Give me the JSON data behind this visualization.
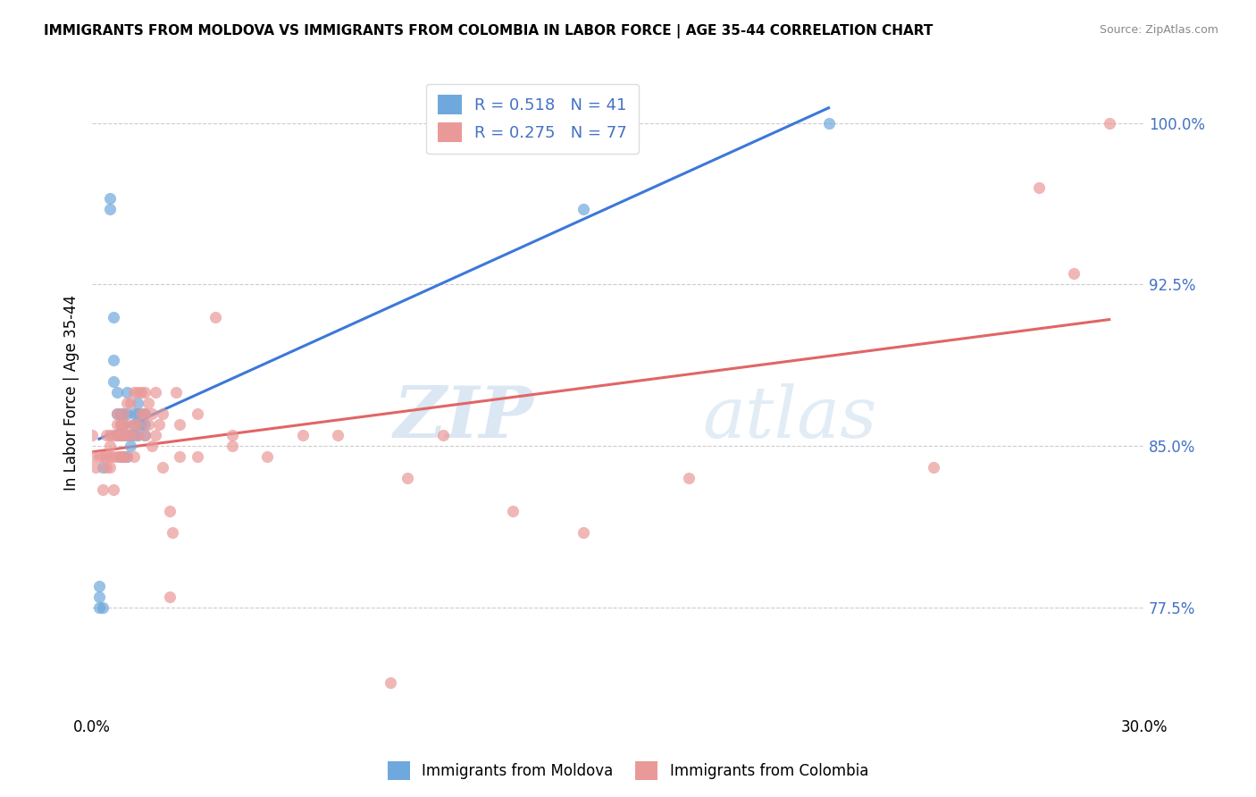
{
  "title": "IMMIGRANTS FROM MOLDOVA VS IMMIGRANTS FROM COLOMBIA IN LABOR FORCE | AGE 35-44 CORRELATION CHART",
  "source": "Source: ZipAtlas.com",
  "ylabel": "In Labor Force | Age 35-44",
  "xlim": [
    0.0,
    0.3
  ],
  "ylim": [
    0.725,
    1.025
  ],
  "yticks": [
    0.775,
    0.85,
    0.925,
    1.0
  ],
  "ytick_labels": [
    "77.5%",
    "85.0%",
    "92.5%",
    "100.0%"
  ],
  "xticks": [
    0.0,
    0.05,
    0.1,
    0.15,
    0.2,
    0.25,
    0.3
  ],
  "xtick_labels": [
    "0.0%",
    "",
    "",
    "",
    "",
    "",
    "30.0%"
  ],
  "moldova_color": "#6fa8dc",
  "colombia_color": "#ea9999",
  "moldova_line_color": "#3c78d8",
  "colombia_line_color": "#e06666",
  "moldova_R": 0.518,
  "moldova_N": 41,
  "colombia_R": 0.275,
  "colombia_N": 77,
  "watermark_zip": "ZIP",
  "watermark_atlas": "atlas",
  "legend_label_moldova": "Immigrants from Moldova",
  "legend_label_colombia": "Immigrants from Colombia",
  "moldova_x": [
    0.003,
    0.005,
    0.005,
    0.006,
    0.006,
    0.006,
    0.007,
    0.007,
    0.007,
    0.008,
    0.008,
    0.008,
    0.008,
    0.009,
    0.009,
    0.009,
    0.009,
    0.01,
    0.01,
    0.01,
    0.01,
    0.011,
    0.011,
    0.012,
    0.012,
    0.012,
    0.013,
    0.013,
    0.013,
    0.013,
    0.014,
    0.014,
    0.015,
    0.015,
    0.015,
    0.002,
    0.002,
    0.002,
    0.003,
    0.14,
    0.21
  ],
  "moldova_y": [
    0.775,
    0.96,
    0.965,
    0.88,
    0.89,
    0.91,
    0.855,
    0.865,
    0.875,
    0.845,
    0.855,
    0.86,
    0.865,
    0.845,
    0.855,
    0.86,
    0.865,
    0.845,
    0.855,
    0.865,
    0.875,
    0.85,
    0.855,
    0.855,
    0.86,
    0.865,
    0.855,
    0.86,
    0.865,
    0.87,
    0.86,
    0.865,
    0.855,
    0.86,
    0.865,
    0.775,
    0.78,
    0.785,
    0.84,
    0.96,
    1.0
  ],
  "colombia_x": [
    0.0,
    0.0,
    0.001,
    0.002,
    0.003,
    0.003,
    0.004,
    0.004,
    0.004,
    0.005,
    0.005,
    0.005,
    0.005,
    0.006,
    0.006,
    0.006,
    0.007,
    0.007,
    0.007,
    0.007,
    0.008,
    0.008,
    0.008,
    0.009,
    0.009,
    0.009,
    0.009,
    0.01,
    0.01,
    0.01,
    0.01,
    0.011,
    0.011,
    0.012,
    0.012,
    0.012,
    0.013,
    0.013,
    0.013,
    0.014,
    0.014,
    0.015,
    0.015,
    0.015,
    0.016,
    0.016,
    0.017,
    0.017,
    0.018,
    0.018,
    0.019,
    0.02,
    0.02,
    0.022,
    0.022,
    0.023,
    0.024,
    0.025,
    0.025,
    0.03,
    0.03,
    0.035,
    0.04,
    0.04,
    0.05,
    0.06,
    0.07,
    0.085,
    0.09,
    0.1,
    0.12,
    0.14,
    0.17,
    0.24,
    0.27,
    0.28,
    0.29
  ],
  "colombia_y": [
    0.845,
    0.855,
    0.84,
    0.845,
    0.83,
    0.845,
    0.84,
    0.845,
    0.855,
    0.84,
    0.845,
    0.85,
    0.855,
    0.83,
    0.845,
    0.855,
    0.845,
    0.855,
    0.86,
    0.865,
    0.845,
    0.855,
    0.86,
    0.845,
    0.855,
    0.86,
    0.865,
    0.845,
    0.855,
    0.86,
    0.87,
    0.855,
    0.87,
    0.845,
    0.86,
    0.875,
    0.855,
    0.86,
    0.875,
    0.865,
    0.875,
    0.855,
    0.865,
    0.875,
    0.86,
    0.87,
    0.85,
    0.865,
    0.855,
    0.875,
    0.86,
    0.84,
    0.865,
    0.82,
    0.78,
    0.81,
    0.875,
    0.845,
    0.86,
    0.865,
    0.845,
    0.91,
    0.85,
    0.855,
    0.845,
    0.855,
    0.855,
    0.74,
    0.835,
    0.855,
    0.82,
    0.81,
    0.835,
    0.84,
    0.97,
    0.93,
    1.0
  ]
}
